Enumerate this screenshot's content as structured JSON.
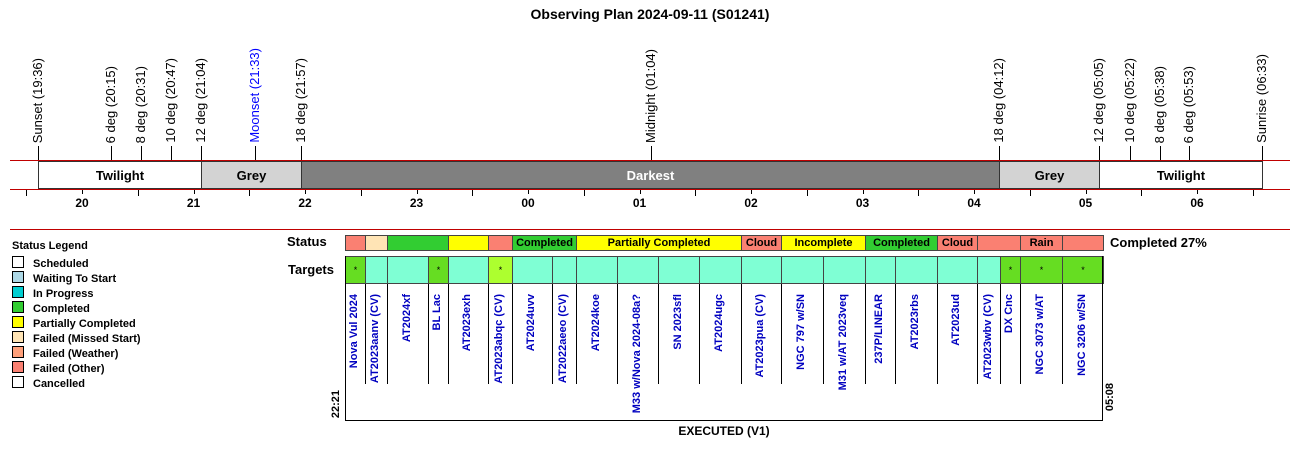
{
  "plan": {
    "title": "Observing Plan 2024-09-11 (S01241)",
    "events": [
      {
        "label": "Sunset (19:36)",
        "color": "#000000"
      },
      {
        "label": "6 deg (20:15)",
        "color": "#000000"
      },
      {
        "label": "8 deg (20:31)",
        "color": "#000000"
      },
      {
        "label": "10 deg (20:47)",
        "color": "#000000"
      },
      {
        "label": "12 deg (21:04)",
        "color": "#000000"
      },
      {
        "label": "Moonset (21:33)",
        "color": "#0000ff"
      },
      {
        "label": "18 deg (21:57)",
        "color": "#000000"
      },
      {
        "label": "Midnight (01:04)",
        "color": "#000000"
      },
      {
        "label": "18 deg (04:12)",
        "color": "#000000"
      },
      {
        "label": "12 deg (05:05)",
        "color": "#000000"
      },
      {
        "label": "10 deg (05:22)",
        "color": "#000000"
      },
      {
        "label": "8 deg (05:38)",
        "color": "#000000"
      },
      {
        "label": "6 deg (05:53)",
        "color": "#000000"
      },
      {
        "label": "Sunrise (06:33)",
        "color": "#000000"
      }
    ],
    "bands": [
      {
        "label": "Twilight",
        "bg": "#ffffff",
        "fg": "#000000"
      },
      {
        "label": "Grey",
        "bg": "#d3d3d3",
        "fg": "#000000"
      },
      {
        "label": "Darkest",
        "bg": "#808080",
        "fg": "#ffffff"
      },
      {
        "label": "Grey",
        "bg": "#d3d3d3",
        "fg": "#000000"
      },
      {
        "label": "Twilight",
        "bg": "#ffffff",
        "fg": "#000000"
      }
    ],
    "hours": [
      "20",
      "21",
      "22",
      "23",
      "00",
      "01",
      "02",
      "03",
      "04",
      "05",
      "06"
    ]
  },
  "legend": {
    "title": "Status Legend",
    "items": [
      {
        "label": "Scheduled",
        "color": "#ffffff"
      },
      {
        "label": "Waiting To Start",
        "color": "#add8e6"
      },
      {
        "label": "In Progress",
        "color": "#00ced1"
      },
      {
        "label": "Completed",
        "color": "#32cd32"
      },
      {
        "label": "Partially Completed",
        "color": "#ffff00"
      },
      {
        "label": "Failed (Missed Start)",
        "color": "#ffe4b5"
      },
      {
        "label": "Failed (Weather)",
        "color": "#ffa07a"
      },
      {
        "label": "Failed (Other)",
        "color": "#fa8072"
      },
      {
        "label": "Cancelled",
        "color": "#ffffff"
      }
    ]
  },
  "status": {
    "row_label": "Status",
    "summary": "Completed 27%",
    "cells": [
      {
        "label": "",
        "color": "#fa8072"
      },
      {
        "label": "",
        "color": "#ffe4b5"
      },
      {
        "label": "",
        "color": "#32cd32"
      },
      {
        "label": "",
        "color": "#ffff00"
      },
      {
        "label": "",
        "color": "#fa8072"
      },
      {
        "label": "Completed",
        "color": "#32cd32"
      },
      {
        "label": "Partially Completed",
        "color": "#ffff00"
      },
      {
        "label": "Cloud",
        "color": "#fa8072"
      },
      {
        "label": "Incomplete",
        "color": "#ffff00"
      },
      {
        "label": "Completed",
        "color": "#32cd32"
      },
      {
        "label": "Cloud",
        "color": "#fa8072"
      },
      {
        "label": "",
        "color": "#fa8072"
      },
      {
        "label": "Rain",
        "color": "#fa8072"
      },
      {
        "label": "",
        "color": "#fa8072"
      }
    ]
  },
  "targets": {
    "row_label": "Targets",
    "start_time": "22:21",
    "end_time": "05:08",
    "footer": "EXECUTED (V1)",
    "items": [
      {
        "name": "Nova Vul 2024",
        "mark": "*",
        "color": "#66dd22"
      },
      {
        "name": "AT2023aanv (CV)",
        "mark": "",
        "color": "#7fffd4"
      },
      {
        "name": "AT2024xf",
        "mark": "",
        "color": "#7fffd4"
      },
      {
        "name": "BL Lac",
        "mark": "*",
        "color": "#66dd22"
      },
      {
        "name": "AT2023exh",
        "mark": "",
        "color": "#7fffd4"
      },
      {
        "name": "AT2023abqc (CV)",
        "mark": "*",
        "color": "#adff2f"
      },
      {
        "name": "AT2024uvv",
        "mark": "",
        "color": "#7fffd4"
      },
      {
        "name": "AT2022aeeo (CV)",
        "mark": "",
        "color": "#7fffd4"
      },
      {
        "name": "AT2024koe",
        "mark": "",
        "color": "#7fffd4"
      },
      {
        "name": "M33 w/Nova 2024-08a?",
        "mark": "",
        "color": "#7fffd4"
      },
      {
        "name": "SN 2023sfl",
        "mark": "",
        "color": "#7fffd4"
      },
      {
        "name": "AT2024ugc",
        "mark": "",
        "color": "#7fffd4"
      },
      {
        "name": "AT2023pua (CV)",
        "mark": "",
        "color": "#7fffd4"
      },
      {
        "name": "NGC 797 w/SN",
        "mark": "",
        "color": "#7fffd4"
      },
      {
        "name": "M31 w/AT 2023veq",
        "mark": "",
        "color": "#7fffd4"
      },
      {
        "name": "237P/LINEAR",
        "mark": "",
        "color": "#7fffd4"
      },
      {
        "name": "AT2023rbs",
        "mark": "",
        "color": "#7fffd4"
      },
      {
        "name": "AT2023ud",
        "mark": "",
        "color": "#7fffd4"
      },
      {
        "name": "AT2023wbv (CV)",
        "mark": "",
        "color": "#7fffd4"
      },
      {
        "name": "DX Cnc",
        "mark": "*",
        "color": "#66dd22"
      },
      {
        "name": "NGC 3073 w/AT",
        "mark": "*",
        "color": "#66dd22"
      },
      {
        "name": "NGC 3206 w/SN",
        "mark": "*",
        "color": "#66dd22"
      }
    ]
  }
}
